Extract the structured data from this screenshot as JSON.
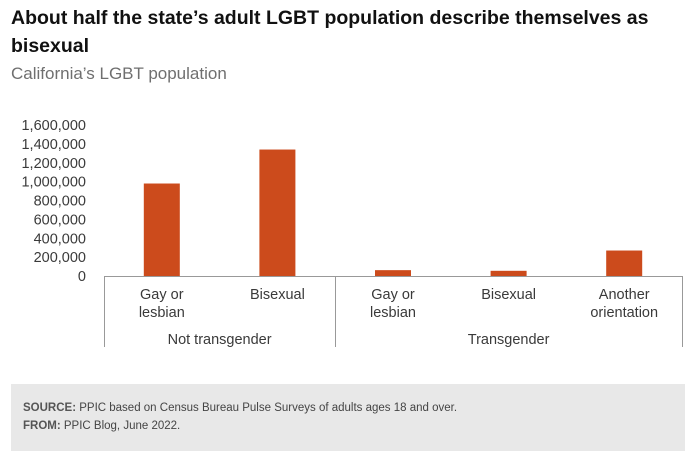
{
  "title": "About half the state’s adult LGBT population describe themselves as bisexual",
  "subtitle": "California’s LGBT population",
  "chart_data": {
    "type": "bar",
    "title": "About half the state’s adult LGBT population describe themselves as bisexual",
    "subtitle": "California’s LGBT population",
    "yticks": [
      "0",
      "200,000",
      "400,000",
      "600,000",
      "800,000",
      "1,000,000",
      "1,200,000",
      "1,400,000",
      "1,600,000"
    ],
    "ylim": [
      0,
      1600000
    ],
    "grid": false,
    "bar_color": "#cc4b1c",
    "groups": [
      {
        "label": "Not transgender",
        "categories": [
          {
            "label": [
              "Gay or",
              "lesbian"
            ],
            "value": 980000
          },
          {
            "label": [
              "Bisexual"
            ],
            "value": 1340000
          }
        ]
      },
      {
        "label": "Transgender",
        "categories": [
          {
            "label": [
              "Gay or",
              "lesbian"
            ],
            "value": 62000
          },
          {
            "label": [
              "Bisexual"
            ],
            "value": 55000
          },
          {
            "label": [
              "Another",
              "orientation"
            ],
            "value": 270000
          }
        ]
      }
    ]
  },
  "footer": {
    "source_label": "SOURCE:",
    "source_text": " PPIC based on Census Bureau Pulse Surveys of adults ages 18 and over.",
    "from_label": "FROM:",
    "from_text": " PPIC Blog, June 2022."
  }
}
